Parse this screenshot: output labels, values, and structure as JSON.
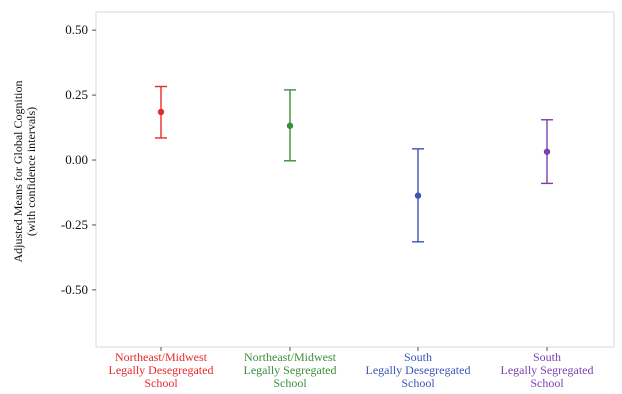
{
  "chart_data": {
    "type": "errorbar",
    "title": "",
    "xlabel": "",
    "ylabel_lines": [
      "Adjusted Means for Global Cognition",
      "(with confidence intervals)"
    ],
    "ylim": [
      -0.72,
      0.57
    ],
    "yticks": [
      0.5,
      0.25,
      0.0,
      -0.25,
      -0.5
    ],
    "ytick_labels": [
      "0.50",
      "0.25",
      "0.00",
      "-0.25",
      "-0.50"
    ],
    "grid": false,
    "categories": [
      {
        "lines": [
          "Northeast/Midwest",
          "Legally Desegregated",
          "School"
        ],
        "mean": 0.185,
        "lower": 0.085,
        "upper": 0.283,
        "color": "#e8292b"
      },
      {
        "lines": [
          "Northeast/Midwest",
          "Legally Segregated",
          "School"
        ],
        "mean": 0.132,
        "lower": -0.003,
        "upper": 0.27,
        "color": "#3a8f3a"
      },
      {
        "lines": [
          "South",
          "Legally Desegregated",
          "School"
        ],
        "mean": -0.137,
        "lower": -0.315,
        "upper": 0.043,
        "color": "#3b55b5"
      },
      {
        "lines": [
          "South",
          "Legally Segregated",
          "School"
        ],
        "mean": 0.032,
        "lower": -0.09,
        "upper": 0.155,
        "color": "#7b3fb0"
      }
    ]
  }
}
